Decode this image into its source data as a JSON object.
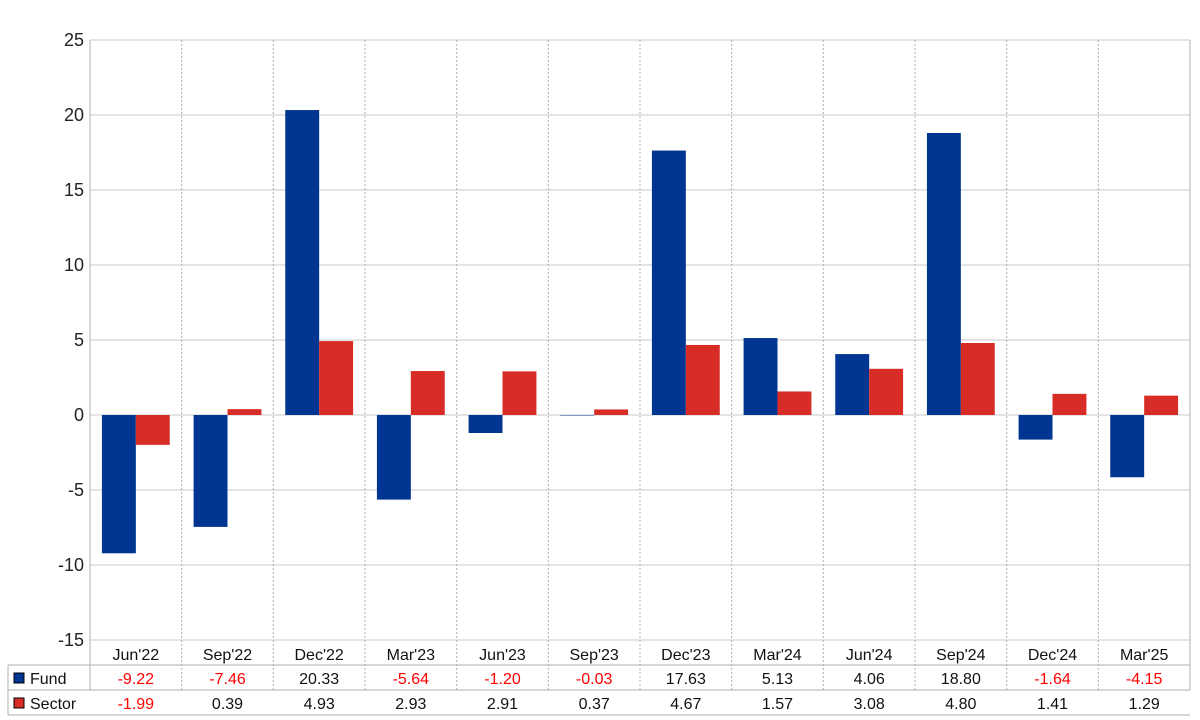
{
  "chart_data": {
    "type": "bar",
    "categories": [
      "Jun'22",
      "Sep'22",
      "Dec'22",
      "Mar'23",
      "Jun'23",
      "Sep'23",
      "Dec'23",
      "Mar'24",
      "Jun'24",
      "Sep'24",
      "Dec'24",
      "Mar'25"
    ],
    "series": [
      {
        "name": "Fund",
        "color": "#003591",
        "values": [
          -9.22,
          -7.46,
          20.33,
          -5.64,
          -1.2,
          -0.03,
          17.63,
          5.13,
          4.06,
          18.8,
          -1.64,
          -4.15
        ],
        "labels": [
          "-9.22",
          "-7.46",
          "20.33",
          "-5.64",
          "-1.20",
          "-0.03",
          "17.63",
          "5.13",
          "4.06",
          "18.80",
          "-1.64",
          "-4.15"
        ]
      },
      {
        "name": "Sector",
        "color": "#d72d26",
        "values": [
          -1.99,
          0.39,
          4.93,
          2.93,
          2.91,
          0.37,
          4.67,
          1.57,
          3.08,
          4.8,
          1.41,
          1.29
        ],
        "labels": [
          "-1.99",
          "0.39",
          "4.93",
          "2.93",
          "2.91",
          "0.37",
          "4.67",
          "1.57",
          "3.08",
          "4.80",
          "1.41",
          "1.29"
        ]
      }
    ],
    "ylim": [
      -15,
      25
    ],
    "yticks": [
      "25",
      "20",
      "15",
      "10",
      "5",
      "0",
      "-5",
      "-10",
      "-15"
    ],
    "ytick_values": [
      25,
      20,
      15,
      10,
      5,
      0,
      -5,
      -10,
      -15
    ],
    "grid": true,
    "legend_placement": "bottom-left data table",
    "negative_label_color": "#ff0000",
    "positive_label_color": "#111111"
  }
}
